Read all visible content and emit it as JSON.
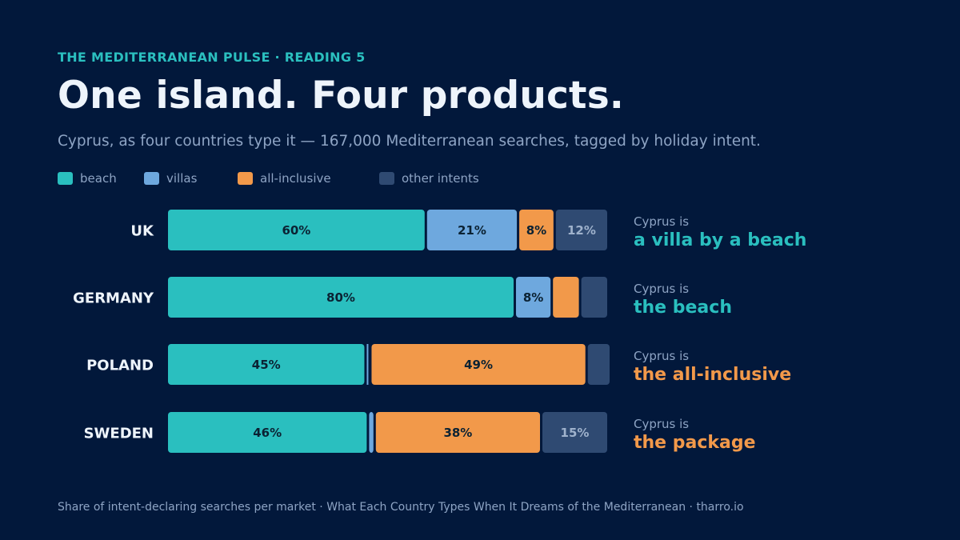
{
  "header": {
    "kicker": "THE MEDITERRANEAN PULSE · READING 5",
    "title": "One island. Four products.",
    "subtitle": "Cyprus, as four countries type it — 167,000 Mediterranean searches, tagged by holiday intent."
  },
  "footer": "Share of intent-declaring searches per market  ·  What Each Country Types When It Dreams of the Mediterranean  ·  tharro.io",
  "colors": {
    "background": "#02183b",
    "beach": "#2abfbf",
    "villas": "#6ea8de",
    "all_inclusive": "#f2994a",
    "other": "#2f4a72",
    "label_dark": "#0b2233",
    "label_muted": "#9fb2cc"
  },
  "chart_data": {
    "type": "bar",
    "orientation": "horizontal",
    "stacked": true,
    "categories": [
      "UK",
      "GERMANY",
      "POLAND",
      "SWEDEN"
    ],
    "series": [
      {
        "name": "beach",
        "values": [
          60,
          80,
          45,
          46
        ],
        "labels": [
          "60%",
          "80%",
          "45%",
          "46%"
        ]
      },
      {
        "name": "villas",
        "values": [
          21,
          8,
          0,
          1
        ],
        "labels": [
          "21%",
          "8%",
          "",
          ""
        ]
      },
      {
        "name": "all-inclusive",
        "values": [
          8,
          6,
          49,
          38
        ],
        "labels": [
          "8%",
          "",
          "49%",
          "38%"
        ]
      },
      {
        "name": "other intents",
        "values": [
          12,
          6,
          5,
          15
        ],
        "labels": [
          "12%",
          "",
          "",
          "15%"
        ]
      }
    ],
    "xlim": [
      0,
      100
    ],
    "legend_position": "top-left",
    "annotations": [
      {
        "prefix": "Cyprus is",
        "text": "a villa by a beach",
        "color": "#2abfbf"
      },
      {
        "prefix": "Cyprus is",
        "text": "the beach",
        "color": "#2abfbf"
      },
      {
        "prefix": "Cyprus is",
        "text": "the all-inclusive",
        "color": "#f2994a"
      },
      {
        "prefix": "Cyprus is",
        "text": "the package",
        "color": "#f2994a"
      }
    ]
  }
}
